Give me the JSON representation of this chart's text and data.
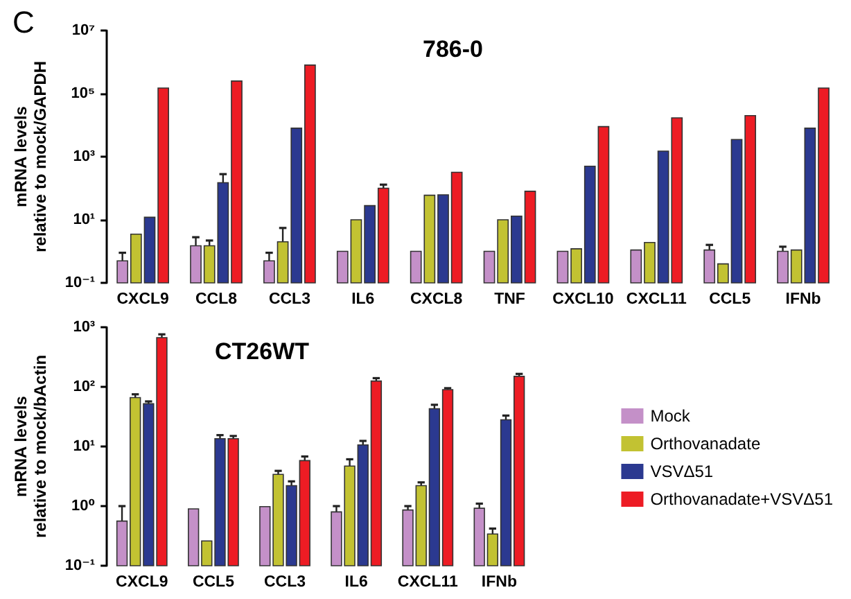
{
  "chart_data": [
    {
      "type": "bar",
      "title": "786-0",
      "ylabel": "mRNA levels\nrelative to mock/GAPDH",
      "annotations": [
        "C"
      ],
      "log": true,
      "categories": [
        "CXCL9",
        "CCL8",
        "CCL3",
        "IL6",
        "CXCL8",
        "TNF",
        "CXCL10",
        "CXCL11",
        "CCL5",
        "IFNb"
      ],
      "ylim": [
        0.1,
        10000000
      ],
      "yticks": [
        {
          "value": 0.1,
          "label": "10⁻¹"
        },
        {
          "value": 10,
          "label": "10¹"
        },
        {
          "value": 1000,
          "label": "10³"
        },
        {
          "value": 100000,
          "label": "10⁵"
        },
        {
          "value": 10000000,
          "label": "10⁷"
        }
      ],
      "grid": false,
      "series": [
        {
          "color": "#c490c8",
          "values": [
            0.5,
            1.5,
            0.5,
            1,
            1,
            1,
            1,
            1.1,
            1.1,
            1
          ],
          "errors": [
            [
              0.5,
              0.9
            ],
            [
              1.5,
              2.8
            ],
            [
              0.5,
              0.9
            ],
            null,
            null,
            null,
            null,
            null,
            [
              1.1,
              1.6
            ],
            [
              1,
              1.4
            ]
          ]
        },
        {
          "color": "#c2c232",
          "values": [
            3.5,
            1.5,
            2,
            10,
            60,
            10,
            1.2,
            1.9,
            0.4,
            1.1
          ],
          "errors": [
            null,
            [
              1.5,
              2.2
            ],
            [
              2,
              5.5
            ],
            null,
            null,
            null,
            null,
            null,
            null,
            null
          ]
        },
        {
          "color": "#2b3990",
          "values": [
            12,
            150,
            8000,
            28,
            62,
            13,
            500,
            1500,
            3500,
            8000
          ],
          "errors": [
            null,
            [
              150,
              280
            ],
            null,
            null,
            null,
            null,
            null,
            null,
            null,
            null
          ]
        },
        {
          "color": "#ed1c24",
          "values": [
            150000,
            250000,
            800000,
            100,
            320,
            80,
            9000,
            17000,
            20000,
            150000
          ],
          "errors": [
            null,
            null,
            null,
            [
              100,
              130
            ],
            null,
            null,
            null,
            null,
            null,
            null
          ]
        }
      ]
    },
    {
      "type": "bar",
      "title": "CT26WT",
      "ylabel": "mRNA levels\nrelative to mock/bActin",
      "log": true,
      "legend": "right",
      "categories": [
        "CXCL9",
        "CCL5",
        "CCL3",
        "IL6",
        "CXCL11",
        "IFNb"
      ],
      "ylim": [
        0.1,
        1000
      ],
      "yticks": [
        {
          "value": 0.1,
          "label": "10⁻¹"
        },
        {
          "value": 1,
          "label": "10⁰"
        },
        {
          "value": 10,
          "label": "10¹"
        },
        {
          "value": 100,
          "label": "10²"
        },
        {
          "value": 1000,
          "label": "10³"
        }
      ],
      "grid": false,
      "series": [
        {
          "name": "Mock",
          "color": "#c490c8",
          "values": [
            0.56,
            0.9,
            0.98,
            0.8,
            0.86,
            0.92
          ],
          "errors": [
            [
              0.56,
              1.0
            ],
            null,
            null,
            [
              0.8,
              1.0
            ],
            [
              0.86,
              1.0
            ],
            [
              0.92,
              1.1
            ]
          ]
        },
        {
          "name": "Orthovanadate",
          "color": "#c2c232",
          "values": [
            66,
            0.26,
            3.4,
            4.7,
            2.2,
            0.34
          ],
          "errors": [
            [
              66,
              75
            ],
            null,
            [
              3.4,
              3.9
            ],
            [
              4.7,
              6.1
            ],
            [
              2.2,
              2.5
            ],
            [
              0.34,
              0.42
            ]
          ]
        },
        {
          "name": "VSVΔ51",
          "color": "#2b3990",
          "values": [
            52,
            13.5,
            2.2,
            10.6,
            43,
            28
          ],
          "errors": [
            [
              52,
              57
            ],
            [
              13.5,
              15.5
            ],
            [
              2.2,
              2.6
            ],
            [
              10.6,
              12.4
            ],
            [
              43,
              50
            ],
            [
              28,
              33
            ]
          ]
        },
        {
          "name": "Orthovanadate+VSVΔ51",
          "color": "#ed1c24",
          "values": [
            670,
            13.5,
            5.8,
            125,
            90,
            150
          ],
          "errors": [
            [
              670,
              760
            ],
            [
              13.5,
              15
            ],
            [
              5.8,
              6.8
            ],
            [
              125,
              140
            ],
            [
              90,
              95
            ],
            [
              150,
              165
            ]
          ]
        }
      ]
    }
  ]
}
